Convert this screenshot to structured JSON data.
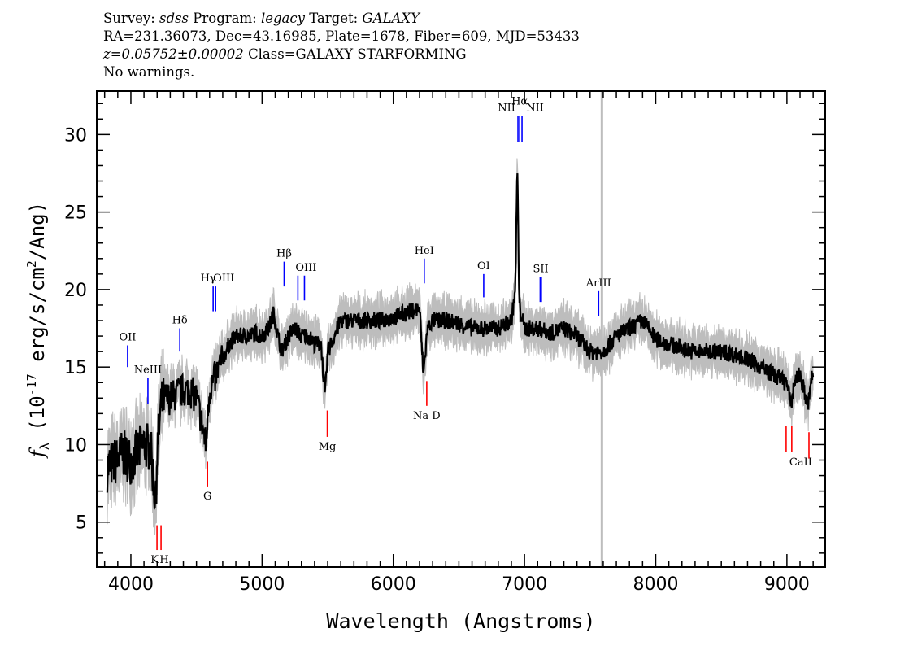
{
  "header": {
    "survey_label": "Survey:",
    "survey": "sdss",
    "program_label": "Program:",
    "program": "legacy",
    "target_label": "Target:",
    "target": "GALAXY",
    "line2": "RA=231.36073, Dec=43.16985, Plate=1678, Fiber=609, MJD=53433",
    "redshift": "z=0.05752±0.00002",
    "class": "Class=GALAXY STARFORMING",
    "warnings": "No warnings."
  },
  "chart_data": {
    "type": "line",
    "xlabel": "Wavelength (Angstroms)",
    "ylabel_main": "f",
    "ylabel_sub": "λ",
    "ylabel_rest": " (10",
    "ylabel_exp": "-17",
    "ylabel_units": " erg/s/cm",
    "ylabel_sq": "2",
    "ylabel_end": "/Ang)",
    "xlim": [
      3740,
      9292
    ],
    "ylim": [
      2.1,
      32.8
    ],
    "xticks": [
      4000,
      5000,
      6000,
      7000,
      8000,
      9000
    ],
    "yticks": [
      5,
      10,
      15,
      20,
      25,
      30
    ],
    "x_minor_step": 100,
    "y_minor_step": 1,
    "grid": false,
    "colors": {
      "flux": "#000000",
      "error": "#bdbdbd",
      "emission": "#0000ff",
      "absorption": "#ff0000",
      "sky_line": "#bdbdbd"
    },
    "sky_line_wavelength": 7590,
    "flux": {
      "x": [
        3820,
        3860,
        3900,
        3940,
        3960,
        4000,
        4050,
        4100,
        4150,
        4190,
        4200,
        4230,
        4260,
        4300,
        4350,
        4400,
        4450,
        4500,
        4550,
        4570,
        4600,
        4650,
        4700,
        4750,
        4800,
        4850,
        4900,
        4950,
        5000,
        5050,
        5090,
        5120,
        5150,
        5200,
        5250,
        5300,
        5350,
        5400,
        5450,
        5480,
        5500,
        5550,
        5600,
        5650,
        5700,
        5800,
        5900,
        6000,
        6100,
        6200,
        6230,
        6260,
        6300,
        6400,
        6500,
        6600,
        6700,
        6800,
        6900,
        6930,
        6945,
        6960,
        7000,
        7100,
        7200,
        7300,
        7400,
        7500,
        7600,
        7700,
        7800,
        7900,
        8000,
        8100,
        8200,
        8300,
        8400,
        8500,
        8600,
        8700,
        8800,
        8900,
        9000,
        9030,
        9060,
        9100,
        9160,
        9190,
        9200
      ],
      "y": [
        8.5,
        8.8,
        9.0,
        9.5,
        9.2,
        9.0,
        9.5,
        10.0,
        9.8,
        6.0,
        9.5,
        12.5,
        13.0,
        13.0,
        13.3,
        13.5,
        13.5,
        13.0,
        11.0,
        10.0,
        13.5,
        14.5,
        15.5,
        16.5,
        17.0,
        17.0,
        17.0,
        17.2,
        17.0,
        17.5,
        18.5,
        17.0,
        16.0,
        17.0,
        17.5,
        17.0,
        17.0,
        16.5,
        16.5,
        13.0,
        16.0,
        17.0,
        18.0,
        18.0,
        18.0,
        18.0,
        18.0,
        18.2,
        18.5,
        18.8,
        14.5,
        17.5,
        18.0,
        18.0,
        17.8,
        17.5,
        17.5,
        17.5,
        18.0,
        20.0,
        28.0,
        19.0,
        17.5,
        17.5,
        17.2,
        17.5,
        17.0,
        16.0,
        16.0,
        17.0,
        17.5,
        18.0,
        16.8,
        16.5,
        16.2,
        16.0,
        16.0,
        16.0,
        15.8,
        15.5,
        15.0,
        14.5,
        14.0,
        12.5,
        14.2,
        14.5,
        12.5,
        14.3,
        14.5
      ]
    },
    "emission_lines": [
      {
        "label": "OII",
        "wavelength": 3975,
        "top": 16.4,
        "bottom": 15.0
      },
      {
        "label": "NeIII",
        "wavelength": 4130,
        "top": 14.3,
        "bottom": 12.6
      },
      {
        "label": "Hδ",
        "wavelength": 4373,
        "top": 17.5,
        "bottom": 16.0
      },
      {
        "label": "Hγ",
        "wavelength": 4627,
        "top": 20.2,
        "bottom": 18.6
      },
      {
        "label": "OIII",
        "wavelength": 4646,
        "top": 20.2,
        "bottom": 18.6
      },
      {
        "label": "Hβ",
        "wavelength": 5168,
        "top": 21.8,
        "bottom": 20.2
      },
      {
        "label": "OIII",
        "wavelength": 5273,
        "top": 20.9,
        "bottom": 19.3
      },
      {
        "label": "",
        "wavelength": 5323,
        "top": 20.9,
        "bottom": 19.3
      },
      {
        "label": "HeI",
        "wavelength": 6236,
        "top": 22.0,
        "bottom": 20.4
      },
      {
        "label": "OI",
        "wavelength": 6689,
        "top": 21.0,
        "bottom": 19.5
      },
      {
        "label": "NII",
        "wavelength": 6950,
        "top": 31.2,
        "bottom": 29.5
      },
      {
        "label": "Hα",
        "wavelength": 6963,
        "top": 31.2,
        "bottom": 29.5
      },
      {
        "label": "NII",
        "wavelength": 6981,
        "top": 31.2,
        "bottom": 29.5
      },
      {
        "label": "SII",
        "wavelength": 7124,
        "top": 20.8,
        "bottom": 19.2
      },
      {
        "label": "ArIII",
        "wavelength": 7565,
        "top": 19.9,
        "bottom": 18.3
      }
    ],
    "absorption_lines": [
      {
        "label": "K",
        "wavelength": 4199,
        "top": 4.8,
        "bottom": 3.2
      },
      {
        "label": "H",
        "wavelength": 4230,
        "top": 4.8,
        "bottom": 3.2
      },
      {
        "label": "G",
        "wavelength": 4584,
        "top": 8.9,
        "bottom": 7.3
      },
      {
        "label": "Mg",
        "wavelength": 5497,
        "top": 12.2,
        "bottom": 10.5
      },
      {
        "label": "Na  D",
        "wavelength": 6255,
        "top": 14.1,
        "bottom": 12.5
      },
      {
        "label": "CaII",
        "wavelength": 8994,
        "top": 11.2,
        "bottom": 9.5
      },
      {
        "label": "",
        "wavelength": 9037,
        "top": 11.2,
        "bottom": 9.5
      },
      {
        "label": "",
        "wavelength": 9168,
        "top": 10.8,
        "bottom": 9.1
      }
    ]
  }
}
